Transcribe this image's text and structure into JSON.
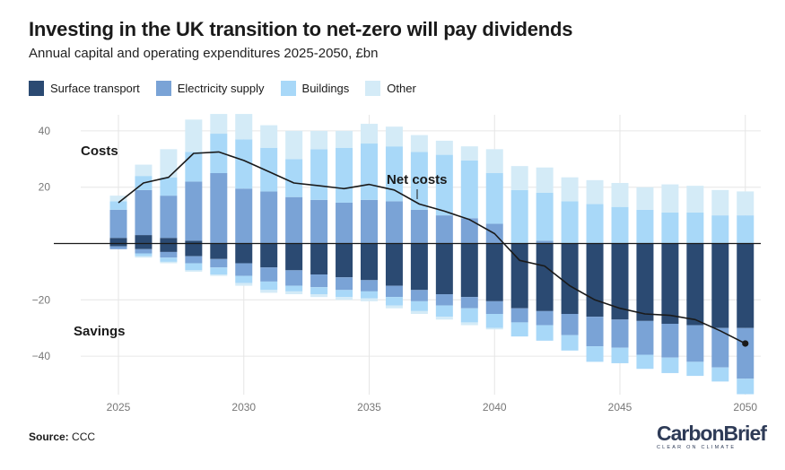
{
  "header": {
    "title": "Investing in the UK transition to net-zero will pay dividends",
    "subtitle": "Annual capital and operating expenditures 2025-2050, £bn"
  },
  "legend": {
    "items": [
      {
        "label": "Surface transport",
        "color": "#2b4a72"
      },
      {
        "label": "Electricity supply",
        "color": "#7aa3d6"
      },
      {
        "label": "Buildings",
        "color": "#a8d8f8"
      },
      {
        "label": "Other",
        "color": "#d4ebf7"
      }
    ]
  },
  "annotations": {
    "costs": "Costs",
    "savings": "Savings",
    "net_costs": "Net costs"
  },
  "footer": {
    "source_label": "Source:",
    "source_value": "CCC"
  },
  "logo": {
    "name_part1": "Carbon",
    "name_part2": "Brief",
    "tagline": "CLEAR ON CLIMATE"
  },
  "chart_data": {
    "type": "bar",
    "stacked": true,
    "title": "Investing in the UK transition to net-zero will pay dividends",
    "subtitle": "Annual capital and operating expenditures 2025-2050, £bn",
    "xlabel": "",
    "ylabel": "£bn",
    "categories": [
      2025,
      2026,
      2027,
      2028,
      2029,
      2030,
      2031,
      2032,
      2033,
      2034,
      2035,
      2036,
      2037,
      2038,
      2039,
      2040,
      2041,
      2042,
      2043,
      2044,
      2045,
      2046,
      2047,
      2048,
      2049,
      2050
    ],
    "x_tick_labels": [
      "2025",
      "2030",
      "2035",
      "2040",
      "2045",
      "2050"
    ],
    "y_tick_labels": [
      "40",
      "20",
      "-20",
      "-40"
    ],
    "ylim": [
      -54,
      48
    ],
    "costs": [
      {
        "name": "Surface transport",
        "values": [
          2,
          3,
          2,
          1,
          0,
          0,
          0,
          0,
          0,
          0,
          0,
          0,
          0,
          0,
          0,
          0,
          0,
          0,
          0,
          0,
          0,
          0,
          0,
          0,
          0,
          0
        ]
      },
      {
        "name": "Electricity supply",
        "values": [
          10,
          16,
          15,
          21,
          25,
          19.5,
          18.5,
          16.5,
          15.5,
          14.5,
          15.5,
          15,
          12,
          10,
          9,
          7,
          0,
          1,
          0,
          0,
          0,
          0,
          0,
          0,
          0,
          0
        ]
      },
      {
        "name": "Buildings",
        "values": [
          3,
          5,
          6.5,
          10.5,
          14,
          17.5,
          15.5,
          13.5,
          18,
          19.5,
          20,
          19.5,
          20.5,
          21.5,
          20.5,
          18,
          19,
          17,
          15,
          14,
          13,
          12,
          11,
          11,
          10,
          10
        ]
      },
      {
        "name": "Other",
        "values": [
          2,
          4,
          10,
          11.5,
          7,
          9,
          8,
          10,
          6.5,
          6,
          7,
          7,
          6,
          5,
          5,
          8.5,
          8.5,
          9,
          8.5,
          8.5,
          8.5,
          8,
          10,
          9.5,
          9,
          8.5
        ]
      }
    ],
    "savings": [
      {
        "name": "Surface transport",
        "values": [
          -1,
          -2,
          -3,
          -4.5,
          -5.5,
          -7,
          -8.5,
          -9.5,
          -11,
          -12,
          -13,
          -15,
          -16.5,
          -18,
          -19,
          -20.5,
          -23,
          -24,
          -25,
          -26,
          -27,
          -27.5,
          -28.5,
          -29,
          -30,
          -30
        ]
      },
      {
        "name": "Electricity supply",
        "values": [
          -1,
          -1.5,
          -2,
          -2.5,
          -3,
          -4.5,
          -5,
          -5.5,
          -4.5,
          -4.5,
          -4,
          -4,
          -4,
          -4,
          -4,
          -4.5,
          -5,
          -5,
          -7.5,
          -10.5,
          -10,
          -12,
          -12,
          -13,
          -14,
          -18
        ]
      },
      {
        "name": "Buildings",
        "values": [
          0,
          -1,
          -1.5,
          -2.5,
          -2.5,
          -2.5,
          -3,
          -2,
          -2.5,
          -2.5,
          -2.5,
          -3,
          -3.5,
          -4,
          -5,
          -5,
          -5,
          -5.5,
          -5.5,
          -5.5,
          -5.5,
          -5,
          -5.5,
          -5,
          -5,
          -5.5
        ]
      },
      {
        "name": "Other",
        "values": [
          0,
          -0.5,
          -0.5,
          -0.5,
          -0.5,
          -1,
          -1,
          -1,
          -1,
          -1,
          -1,
          -1,
          -1,
          -1,
          -1,
          -0.5,
          0,
          0,
          0,
          0,
          0,
          0,
          0,
          0,
          0,
          0
        ]
      }
    ],
    "net_costs": {
      "name": "Net costs",
      "values": [
        14.5,
        21.5,
        23.5,
        32,
        32.5,
        29.5,
        25.5,
        21.5,
        20.5,
        19.5,
        21,
        19,
        14,
        11.5,
        8.5,
        3.5,
        -6,
        -8,
        -15,
        -20,
        -23,
        -25,
        -25.5,
        -27,
        -31,
        -35.5
      ]
    }
  }
}
